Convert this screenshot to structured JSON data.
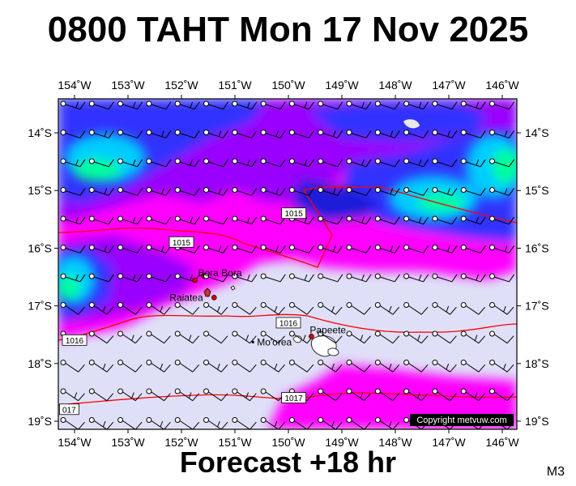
{
  "title": "0800 TAHT Mon 17 Nov 2025",
  "footer": "Forecast +18 hr",
  "model_label": "M3",
  "copyright": "Copyright metvuw.com",
  "lon_labels": [
    "154˚W",
    "153˚W",
    "152˚W",
    "151˚W",
    "150˚W",
    "149˚W",
    "148˚W",
    "147˚W",
    "146˚W"
  ],
  "lat_labels": [
    "14˚S",
    "15˚S",
    "16˚S",
    "17˚S",
    "18˚S",
    "19˚S"
  ],
  "places": [
    {
      "name": "Bora Bora",
      "lon": -151.75,
      "lat": -16.5
    },
    {
      "name": "Raiatea",
      "lon": -151.45,
      "lat": -16.8
    },
    {
      "name": "Papeete",
      "lon": -149.57,
      "lat": -17.53
    },
    {
      "name": "Mo'orea",
      "lon": -149.83,
      "lat": -17.53
    }
  ],
  "isobars": [
    {
      "label": "1015",
      "lon": -152.0,
      "lat": -15.9
    },
    {
      "label": "1015",
      "lon": -149.9,
      "lat": -15.4
    },
    {
      "label": "1016",
      "lon": -150.0,
      "lat": -17.3
    },
    {
      "label": "1016",
      "lon": -154.0,
      "lat": -17.6
    },
    {
      "label": "1017",
      "lon": -149.9,
      "lat": -18.6
    },
    {
      "label": "017",
      "lon": -154.1,
      "lat": -18.8
    }
  ],
  "colors": {
    "wet": "#dfe0f8",
    "magenta": "#ff00ff",
    "purple": "#9900ff",
    "blue": "#3333ff",
    "darkblue": "#1a1ad9",
    "cyan": "#00ccff",
    "green": "#00ff99",
    "isobar": "#ff0000",
    "barb": "#000000"
  }
}
